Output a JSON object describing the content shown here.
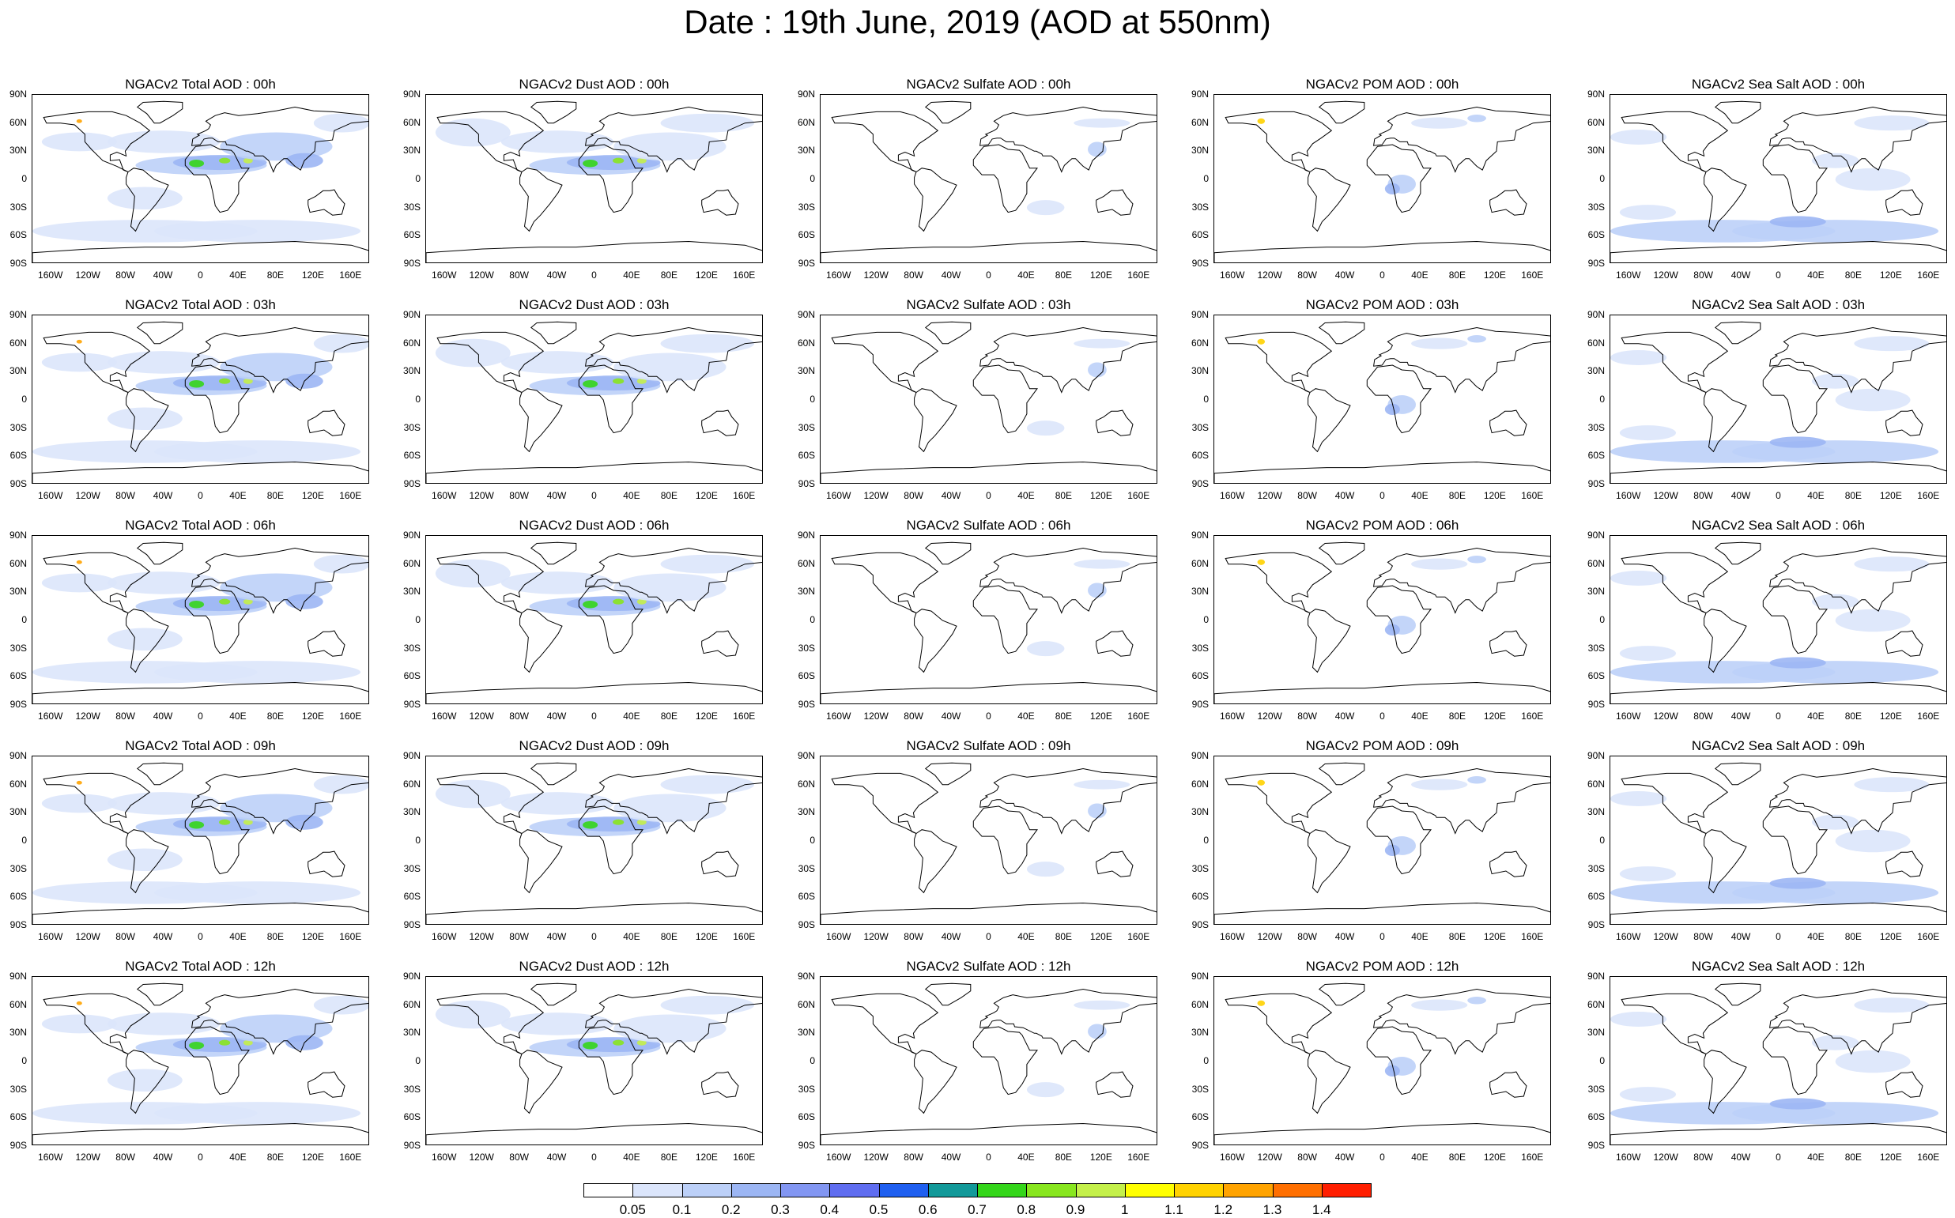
{
  "title": "Date : 19th June, 2019 (AOD at 550nm)",
  "lat_ticks": [
    "90N",
    "60N",
    "30N",
    "0",
    "30S",
    "60S",
    "90S"
  ],
  "lon_ticks": [
    "160W",
    "120W",
    "80W",
    "40W",
    "0",
    "40E",
    "80E",
    "120E",
    "160E"
  ],
  "columns": [
    {
      "species": "total",
      "titles": [
        "NGACv2 Total AOD : 00h",
        "NGACv2 Total AOD : 03h",
        "NGACv2 Total AOD : 06h",
        "NGACv2 Total AOD : 09h",
        "NGACv2 Total AOD  : 12h"
      ]
    },
    {
      "species": "dust",
      "titles": [
        "NGACv2 Dust AOD : 00h",
        "NGACv2 Dust AOD : 03h",
        "NGACv2 Dust AOD : 06h",
        "NGACv2 Dust AOD : 09h",
        "NGACv2 Dust AOD : 12h"
      ]
    },
    {
      "species": "sulfate",
      "titles": [
        "NGACv2 Sulfate AOD : 00h",
        "NGACv2 Sulfate AOD : 03h",
        "NGACv2 Sulfate AOD : 06h",
        "NGACv2 Sulfate AOD : 09h",
        "NGACv2 Sulfate AOD : 12h"
      ]
    },
    {
      "species": "pom",
      "titles": [
        "NGACv2 POM AOD : 00h",
        "NGACv2 POM AOD : 03h",
        "NGACv2 POM AOD : 06h",
        "NGACv2 POM AOD : 09h",
        "NGACv2 POM  AOD : 12h"
      ]
    },
    {
      "species": "seasalt",
      "titles": [
        "NGACv2 Sea Salt AOD : 00h",
        "NGACv2 Sea Salt AOD : 03h",
        "NGACv2 Sea Salt AOD : 06h",
        "NGACv2 Sea Salt  AOD : 09h",
        "NGACv2 Sea Salt AOD : 12h"
      ]
    }
  ],
  "colorbar": {
    "labels": [
      "0.05",
      "0.1",
      "0.2",
      "0.3",
      "0.4",
      "0.5",
      "0.6",
      "0.7",
      "0.8",
      "0.9",
      "1",
      "1.1",
      "1.2",
      "1.3",
      "1.4"
    ],
    "colors": [
      "#ffffff",
      "#dbe5fb",
      "#bcd0f8",
      "#9cb6f4",
      "#8296f2",
      "#5f6df0",
      "#1f5ff0",
      "#129999",
      "#34d61a",
      "#88e61f",
      "#c4f04a",
      "#ffff00",
      "#ffd200",
      "#ffa300",
      "#ff6f00",
      "#ff1e00"
    ]
  }
}
